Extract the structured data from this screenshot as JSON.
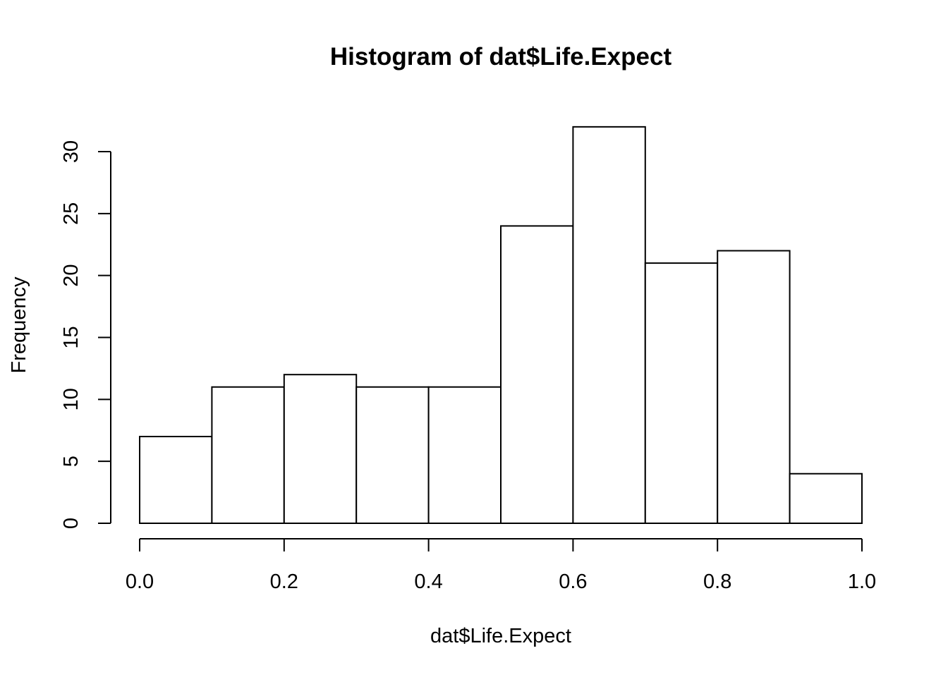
{
  "chart_data": {
    "type": "bar",
    "title": "Histogram of dat$Life.Expect",
    "xlabel": "dat$Life.Expect",
    "ylabel": "Frequency",
    "bins": [
      {
        "start": 0.0,
        "end": 0.1,
        "count": 7
      },
      {
        "start": 0.1,
        "end": 0.2,
        "count": 11
      },
      {
        "start": 0.2,
        "end": 0.3,
        "count": 12
      },
      {
        "start": 0.3,
        "end": 0.4,
        "count": 11
      },
      {
        "start": 0.4,
        "end": 0.5,
        "count": 11
      },
      {
        "start": 0.5,
        "end": 0.6,
        "count": 24
      },
      {
        "start": 0.6,
        "end": 0.7,
        "count": 32
      },
      {
        "start": 0.7,
        "end": 0.8,
        "count": 21
      },
      {
        "start": 0.8,
        "end": 0.9,
        "count": 22
      },
      {
        "start": 0.9,
        "end": 1.0,
        "count": 4
      }
    ],
    "xlim": [
      0.0,
      1.0
    ],
    "ylim": [
      0,
      30
    ],
    "xticks": [
      0.0,
      0.2,
      0.4,
      0.6,
      0.8,
      1.0
    ],
    "xtick_labels": [
      "0.0",
      "0.2",
      "0.4",
      "0.6",
      "0.8",
      "1.0"
    ],
    "yticks": [
      0,
      5,
      10,
      15,
      20,
      25,
      30
    ],
    "ytick_labels": [
      "0",
      "5",
      "10",
      "15",
      "20",
      "25",
      "30"
    ],
    "grid": false,
    "legend": "none"
  }
}
